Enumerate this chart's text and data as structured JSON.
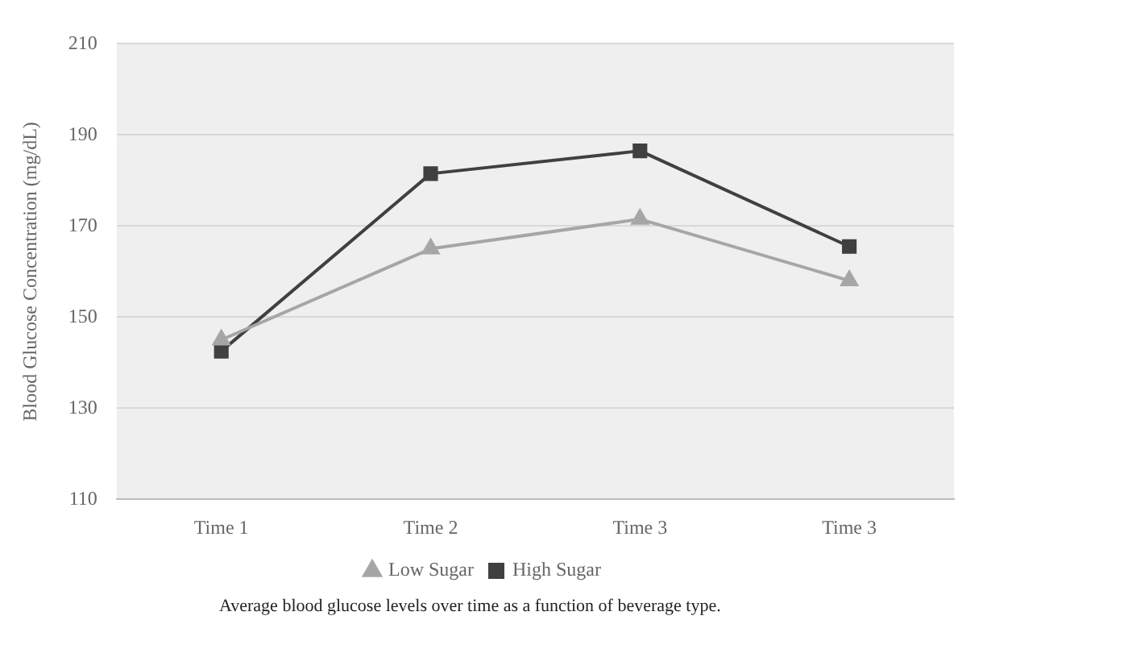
{
  "chart_data": {
    "type": "line",
    "ylabel": "Blood Glucose Concentration (mg/dL)",
    "categories": [
      "Time 1",
      "Time 2",
      "Time 3",
      "Time 3"
    ],
    "series": [
      {
        "name": "Low Sugar",
        "color": "#a6a6a6",
        "marker": "triangle",
        "values": [
          145,
          165,
          171.5,
          158
        ]
      },
      {
        "name": "High Sugar",
        "color": "#404040",
        "marker": "square",
        "values": [
          142.5,
          181.5,
          186.5,
          165.5
        ]
      }
    ],
    "ylim": [
      110,
      210
    ],
    "yticks": [
      110,
      130,
      150,
      170,
      190,
      210
    ],
    "grid": "y",
    "legend": "bottom",
    "annotations": [
      "Average blood glucose levels over time as a function of beverage type."
    ]
  }
}
